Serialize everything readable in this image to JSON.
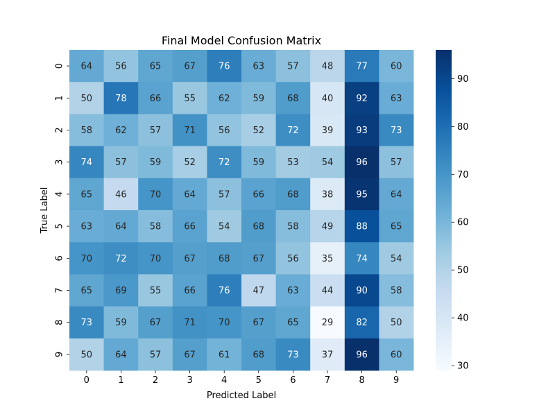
{
  "chart_data": {
    "type": "heatmap",
    "title": "Final Model Confusion Matrix",
    "xlabel": "Predicted Label",
    "ylabel": "True Label",
    "x_categories": [
      "0",
      "1",
      "2",
      "3",
      "4",
      "5",
      "6",
      "7",
      "8",
      "9"
    ],
    "y_categories": [
      "0",
      "1",
      "2",
      "3",
      "4",
      "5",
      "6",
      "7",
      "8",
      "9"
    ],
    "values": [
      [
        64,
        56,
        65,
        67,
        76,
        63,
        57,
        48,
        77,
        60
      ],
      [
        50,
        78,
        66,
        55,
        62,
        59,
        68,
        40,
        92,
        63
      ],
      [
        58,
        62,
        57,
        71,
        56,
        52,
        72,
        39,
        93,
        73
      ],
      [
        74,
        57,
        59,
        52,
        72,
        59,
        53,
        54,
        96,
        57
      ],
      [
        65,
        46,
        70,
        64,
        57,
        66,
        68,
        38,
        95,
        64
      ],
      [
        63,
        64,
        58,
        66,
        54,
        68,
        58,
        49,
        88,
        65
      ],
      [
        70,
        72,
        70,
        67,
        68,
        67,
        56,
        35,
        74,
        54
      ],
      [
        65,
        69,
        55,
        66,
        76,
        47,
        63,
        44,
        90,
        58
      ],
      [
        73,
        59,
        67,
        71,
        70,
        67,
        65,
        29,
        82,
        50
      ],
      [
        50,
        64,
        57,
        67,
        61,
        68,
        73,
        37,
        96,
        60
      ]
    ],
    "colormap": "Blues",
    "colormap_stops": [
      "#f7fbff",
      "#deebf7",
      "#c6dbef",
      "#9ecae1",
      "#6baed6",
      "#4292c6",
      "#2171b5",
      "#08519c",
      "#08306b"
    ],
    "vmin": 29,
    "vmax": 96,
    "colorbar_ticks": [
      30,
      40,
      50,
      60,
      70,
      80,
      90
    ],
    "annotate": true,
    "grid": false,
    "colorbar": "right"
  }
}
